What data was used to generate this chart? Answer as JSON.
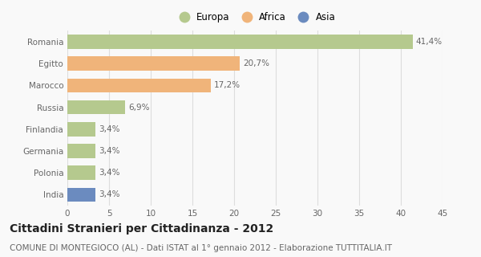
{
  "categories": [
    "Romania",
    "Egitto",
    "Marocco",
    "Russia",
    "Finlandia",
    "Germania",
    "Polonia",
    "India"
  ],
  "values": [
    41.4,
    20.7,
    17.2,
    6.9,
    3.4,
    3.4,
    3.4,
    3.4
  ],
  "labels": [
    "41,4%",
    "20,7%",
    "17,2%",
    "6,9%",
    "3,4%",
    "3,4%",
    "3,4%",
    "3,4%"
  ],
  "colors": [
    "#b5c98e",
    "#f0b47a",
    "#f0b47a",
    "#b5c98e",
    "#b5c98e",
    "#b5c98e",
    "#b5c98e",
    "#6b8bbf"
  ],
  "legend_labels": [
    "Europa",
    "Africa",
    "Asia"
  ],
  "legend_colors": [
    "#b5c98e",
    "#f0b47a",
    "#6b8bbf"
  ],
  "title": "Cittadini Stranieri per Cittadinanza - 2012",
  "subtitle": "COMUNE DI MONTEGIOCO (AL) - Dati ISTAT al 1° gennaio 2012 - Elaborazione TUTTITALIA.IT",
  "xlim": [
    0,
    45
  ],
  "xticks": [
    0,
    5,
    10,
    15,
    20,
    25,
    30,
    35,
    40,
    45
  ],
  "background_color": "#f9f9f9",
  "grid_color": "#dddddd",
  "bar_height": 0.65,
  "title_fontsize": 10,
  "subtitle_fontsize": 7.5,
  "label_fontsize": 7.5,
  "tick_fontsize": 7.5,
  "legend_fontsize": 8.5
}
